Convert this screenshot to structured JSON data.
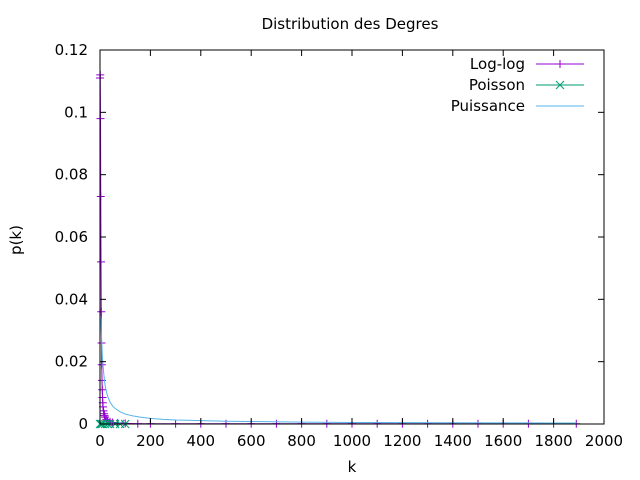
{
  "chart_data": {
    "type": "line",
    "title": "Distribution des Degres",
    "xlabel": "k",
    "ylabel": "p(k)",
    "xlim": [
      0,
      2000
    ],
    "ylim": [
      0,
      0.12
    ],
    "xticks": [
      0,
      200,
      400,
      600,
      800,
      1000,
      1200,
      1400,
      1600,
      1800,
      2000
    ],
    "yticks": [
      0,
      0.02,
      0.04,
      0.06,
      0.08,
      0.1,
      0.12
    ],
    "xtick_labels": [
      "0",
      "200",
      "400",
      "600",
      "800",
      "1000",
      "1200",
      "1400",
      "1600",
      "1800",
      "2000"
    ],
    "ytick_labels": [
      "0",
      "0.02",
      "0.04",
      "0.06",
      "0.08",
      "0.1",
      "0.12"
    ],
    "grid": false,
    "legend_position": "top-right",
    "series": [
      {
        "name": "Log-log",
        "color": "#9400d3",
        "marker": "plus",
        "line": true,
        "points": [
          [
            0,
            0.111
          ],
          [
            1,
            0.112
          ],
          [
            2,
            0.098
          ],
          [
            3,
            0.073
          ],
          [
            4,
            0.052
          ],
          [
            5,
            0.036
          ],
          [
            6,
            0.026
          ],
          [
            7,
            0.019
          ],
          [
            8,
            0.014
          ],
          [
            9,
            0.011
          ],
          [
            10,
            0.0085
          ],
          [
            11,
            0.0068
          ],
          [
            12,
            0.0055
          ],
          [
            14,
            0.0042
          ],
          [
            16,
            0.0033
          ],
          [
            18,
            0.0027
          ],
          [
            20,
            0.0022
          ],
          [
            25,
            0.0015
          ],
          [
            30,
            0.0011
          ],
          [
            40,
            0.0007
          ],
          [
            50,
            0.0005
          ],
          [
            70,
            0.0003
          ],
          [
            100,
            0.0002
          ],
          [
            150,
            0.0001
          ],
          [
            200,
            0.0001
          ],
          [
            300,
            0.0001
          ],
          [
            400,
            0.0001
          ],
          [
            500,
            0.0001
          ],
          [
            600,
            0.0001
          ],
          [
            700,
            0.0001
          ],
          [
            800,
            0.0001
          ],
          [
            900,
            0.0001
          ],
          [
            1000,
            0.0001
          ],
          [
            1100,
            0.0001
          ],
          [
            1200,
            0.0001
          ],
          [
            1300,
            0.0001
          ],
          [
            1400,
            0.0001
          ],
          [
            1500,
            0.0001
          ],
          [
            1600,
            0.0001
          ],
          [
            1700,
            0.0001
          ],
          [
            1800,
            0.0001
          ],
          [
            1890,
            0.0001
          ]
        ]
      },
      {
        "name": "Poisson",
        "color": "#009e73",
        "marker": "cross",
        "line": true,
        "points": [
          [
            0,
            0.0
          ],
          [
            5,
            0.0
          ],
          [
            10,
            0.0
          ],
          [
            20,
            0.0
          ],
          [
            30,
            0.0
          ],
          [
            40,
            0.0
          ],
          [
            60,
            0.0
          ],
          [
            80,
            0.0
          ],
          [
            100,
            0.0
          ]
        ]
      },
      {
        "name": "Puissance",
        "color": "#56b4e9",
        "marker": "none",
        "line": true,
        "points": [
          [
            3,
            0.034
          ],
          [
            5,
            0.03
          ],
          [
            8,
            0.024
          ],
          [
            10,
            0.021
          ],
          [
            15,
            0.016
          ],
          [
            20,
            0.0125
          ],
          [
            25,
            0.0105
          ],
          [
            30,
            0.009
          ],
          [
            40,
            0.007
          ],
          [
            50,
            0.0058
          ],
          [
            60,
            0.005
          ],
          [
            80,
            0.0039
          ],
          [
            100,
            0.0032
          ],
          [
            130,
            0.0026
          ],
          [
            160,
            0.0022
          ],
          [
            200,
            0.0018
          ],
          [
            250,
            0.0015
          ],
          [
            300,
            0.0013
          ],
          [
            350,
            0.0012
          ],
          [
            400,
            0.0011
          ],
          [
            500,
            0.0009
          ],
          [
            600,
            0.0008
          ],
          [
            800,
            0.0006
          ],
          [
            1000,
            0.0005
          ],
          [
            1200,
            0.00045
          ],
          [
            1400,
            0.0004
          ],
          [
            1600,
            0.00035
          ],
          [
            1800,
            0.0003
          ],
          [
            1890,
            0.0003
          ]
        ]
      }
    ]
  }
}
